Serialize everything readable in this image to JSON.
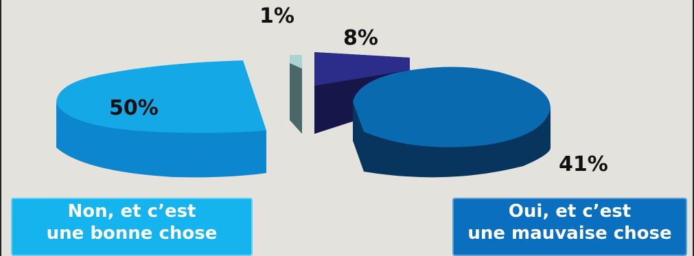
{
  "chart_data": {
    "type": "pie",
    "slices": [
      {
        "label": "",
        "value": 1,
        "value_label": "1%",
        "color": "#a8d4d6",
        "side_color": "#4a6a6a"
      },
      {
        "label": "",
        "value": 8,
        "value_label": "8%",
        "color": "#2b2b86",
        "side_color": "#1a1a55"
      },
      {
        "label": "Oui, et c’est une mauvaise chose",
        "value": 41,
        "value_label": "41%",
        "color": "#0a6aaf",
        "side_color": "#062f55"
      },
      {
        "label": "Non, et c’est une bonne chose",
        "value": 50,
        "value_label": "50%",
        "color": "#16a8e4",
        "side_color": "#0a7fc0"
      }
    ],
    "style": "3d-exploded",
    "legend": {
      "left": {
        "line1": "Non, et c’est",
        "line2": "une bonne chose",
        "color": "#16b4ee"
      },
      "right": {
        "line1": "Oui, et c’est",
        "line2": "une mauvaise chose",
        "color": "#0a6fbe"
      }
    }
  }
}
